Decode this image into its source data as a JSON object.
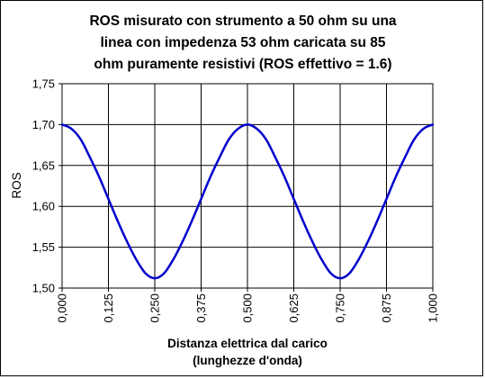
{
  "chart_data": {
    "type": "line",
    "title_lines": [
      "ROS misurato con strumento a 50 ohm su una",
      "linea con impedenza 53 ohm caricata su 85",
      "ohm puramente resistivi (ROS effettivo = 1.6)"
    ],
    "xlabel_lines": [
      "Distanza elettrica dal carico",
      "(lunghezze d'onda)"
    ],
    "ylabel": "ROS",
    "xlim": [
      0,
      1
    ],
    "ylim": [
      1.5,
      1.75
    ],
    "x_ticks": [
      0,
      0.125,
      0.25,
      0.375,
      0.5,
      0.625,
      0.75,
      0.875,
      1
    ],
    "x_tick_labels": [
      "0,000",
      "0,125",
      "0,250",
      "0,375",
      "0,500",
      "0,625",
      "0,750",
      "0,875",
      "1,000"
    ],
    "y_ticks": [
      1.5,
      1.55,
      1.6,
      1.65,
      1.7,
      1.75
    ],
    "y_tick_labels": [
      "1,50",
      "1,55",
      "1,60",
      "1,65",
      "1,70",
      "1,75"
    ],
    "grid": true,
    "legend": "none",
    "line_color": "#0000cc",
    "series": [
      {
        "x": [
          0,
          0.025,
          0.05,
          0.075,
          0.1,
          0.125,
          0.15,
          0.175,
          0.2,
          0.225,
          0.25,
          0.275,
          0.3,
          0.325,
          0.35,
          0.375,
          0.4,
          0.425,
          0.45,
          0.475,
          0.5,
          0.525,
          0.55,
          0.575,
          0.6,
          0.625,
          0.65,
          0.675,
          0.7,
          0.725,
          0.75,
          0.775,
          0.8,
          0.825,
          0.85,
          0.875,
          0.9,
          0.925,
          0.95,
          0.975,
          1
        ],
        "values": [
          1.7,
          1.695,
          1.682,
          1.66,
          1.636,
          1.609,
          1.582,
          1.557,
          1.535,
          1.518,
          1.512,
          1.518,
          1.535,
          1.557,
          1.582,
          1.609,
          1.636,
          1.66,
          1.682,
          1.695,
          1.7,
          1.695,
          1.682,
          1.66,
          1.636,
          1.609,
          1.582,
          1.557,
          1.535,
          1.518,
          1.512,
          1.518,
          1.535,
          1.557,
          1.582,
          1.609,
          1.636,
          1.66,
          1.682,
          1.695,
          1.7
        ]
      }
    ]
  }
}
